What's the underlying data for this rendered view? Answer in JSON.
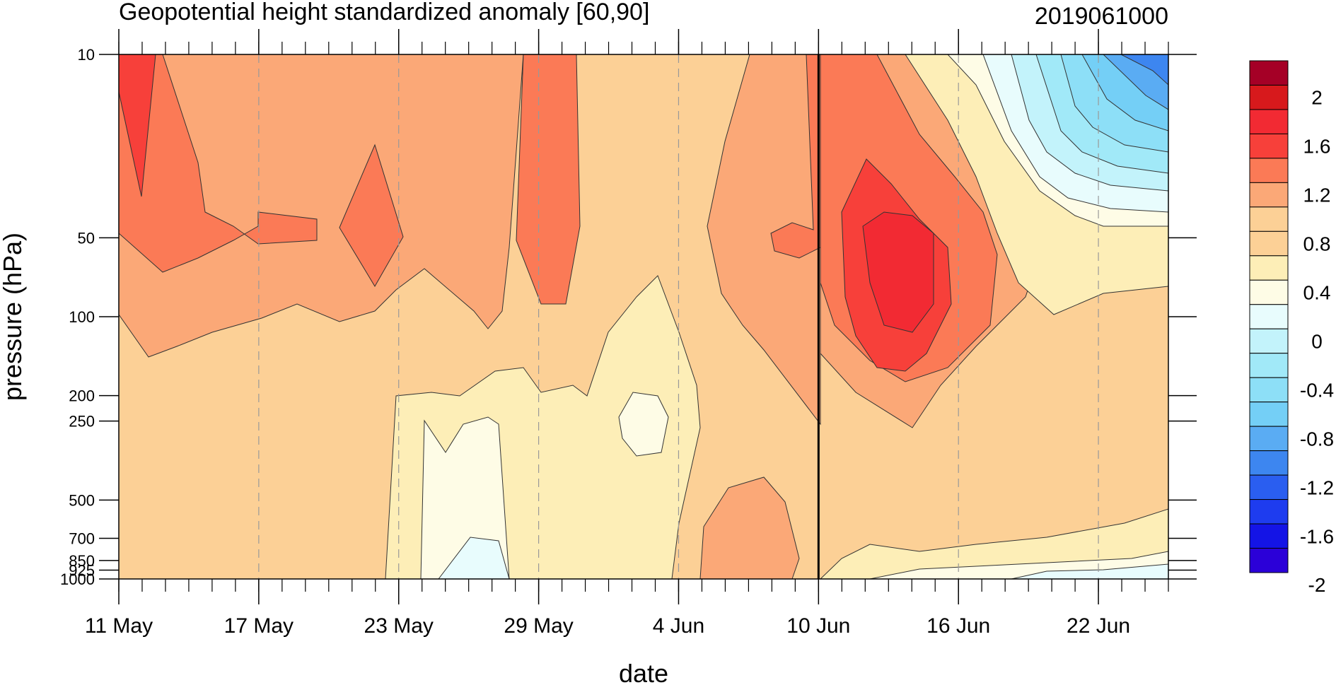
{
  "chart_data": {
    "type": "contour",
    "title": "Geopotential height standardized anomaly [60,90]",
    "date_stamp": "2019061000",
    "xlabel": "date",
    "ylabel": "pressure (hPa)",
    "y_scale": "log",
    "y_reversed": true,
    "ylim": [
      1000,
      10
    ],
    "yticks": [
      10,
      50,
      100,
      200,
      250,
      500,
      700,
      850,
      925,
      1000
    ],
    "ytick_labels": [
      "10",
      "50",
      "100",
      "200",
      "250",
      "500",
      "700",
      "850",
      "925",
      "1000"
    ],
    "xlim": [
      "2019-05-11",
      "2019-06-25"
    ],
    "xtick_labels": [
      "11 May",
      "17 May",
      "23 May",
      "29 May",
      "4 Jun",
      "10 Jun",
      "16 Jun",
      "22 Jun"
    ],
    "xtick_dates": [
      "2019-05-11",
      "2019-05-17",
      "2019-05-23",
      "2019-05-29",
      "2019-06-04",
      "2019-06-10",
      "2019-06-16",
      "2019-06-22"
    ],
    "vertical_marker_date": "2019-06-10",
    "grid": "dashed vertical lines at labelled dates",
    "contour_levels": [
      -2.2,
      -2,
      -1.8,
      -1.6,
      -1.4,
      -1.2,
      -1,
      -0.8,
      -0.6,
      -0.4,
      -0.2,
      0,
      0.2,
      0.4,
      0.6,
      0.8,
      1,
      1.2,
      1.4,
      1.6,
      1.8,
      2,
      2.2
    ],
    "colorbar": {
      "labels": [
        "2",
        "1.6",
        "1.2",
        "0.8",
        "0.4",
        "0",
        "-0.4",
        "-0.8",
        "-1.2",
        "-1.6",
        "-2"
      ],
      "colors": [
        "#a50026",
        "#d7191c",
        "#f22a33",
        "#f7403a",
        "#fb7a56",
        "#fba877",
        "#fcd096",
        "#fcd096",
        "#fdeeb7",
        "#fefce6",
        "#e8fcfd",
        "#c3f3fb",
        "#a1e9f8",
        "#8ddff7",
        "#74cff6",
        "#5aacf3",
        "#3d86f0",
        "#2a5ef0",
        "#1e3cef",
        "#1414e6",
        "#2b00d8"
      ]
    },
    "features": [
      {
        "label": "positive anomaly maximum (1.6 to 2.0)",
        "date": "2019-06-13",
        "pressure_hPa": 65,
        "value": 1.7
      },
      {
        "label": "negative anomaly minimum (-1.6)",
        "date": "2019-06-25",
        "pressure_hPa": 10,
        "value": -1.6
      },
      {
        "label": "positive anomaly 1.2-1.6",
        "date": "2019-05-12",
        "pressure_hPa": 15,
        "value": 1.3
      },
      {
        "label": "weak negative anomaly near surface",
        "date": "2019-05-26",
        "pressure_hPa": 950,
        "value": -0.3
      }
    ]
  }
}
